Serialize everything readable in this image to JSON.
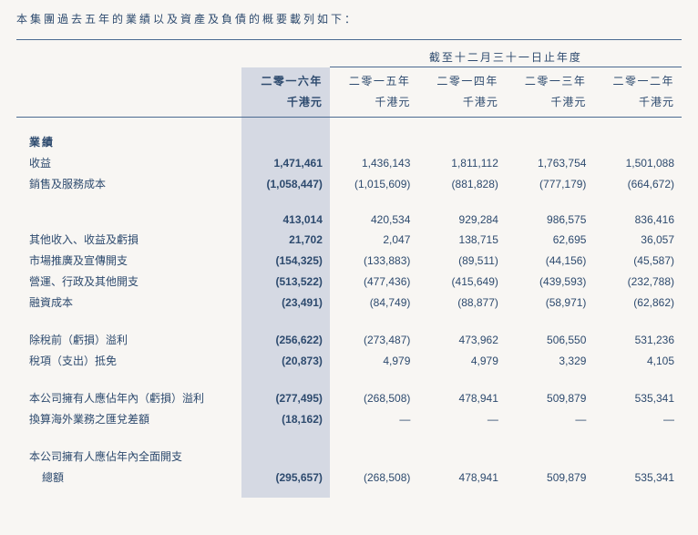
{
  "intro": "本集團過去五年的業績以及資產及負債的概要載列如下：",
  "superHeader": "截至十二月三十一日止年度",
  "years": [
    "二零一六年",
    "二零一五年",
    "二零一四年",
    "二零一三年",
    "二零一二年"
  ],
  "unit": "千港元",
  "section1": "業績",
  "rows": {
    "revenue": {
      "label": "收益",
      "v": [
        "1,471,461",
        "1,436,143",
        "1,811,112",
        "1,763,754",
        "1,501,088"
      ]
    },
    "cost": {
      "label": "銷售及服務成本",
      "v": [
        "(1,058,447)",
        "(1,015,609)",
        "(881,828)",
        "(777,179)",
        "(664,672)"
      ]
    },
    "gross": {
      "label": "",
      "v": [
        "413,014",
        "420,534",
        "929,284",
        "986,575",
        "836,416"
      ]
    },
    "other": {
      "label": "其他收入、收益及虧損",
      "v": [
        "21,702",
        "2,047",
        "138,715",
        "62,695",
        "36,057"
      ]
    },
    "mkt": {
      "label": "市場推廣及宣傳開支",
      "v": [
        "(154,325)",
        "(133,883)",
        "(89,511)",
        "(44,156)",
        "(45,587)"
      ]
    },
    "admin": {
      "label": "營運、行政及其他開支",
      "v": [
        "(513,522)",
        "(477,436)",
        "(415,649)",
        "(439,593)",
        "(232,788)"
      ]
    },
    "fin": {
      "label": "融資成本",
      "v": [
        "(23,491)",
        "(84,749)",
        "(88,877)",
        "(58,971)",
        "(62,862)"
      ]
    },
    "pretax": {
      "label": "除稅前（虧損）溢利",
      "v": [
        "(256,622)",
        "(273,487)",
        "473,962",
        "506,550",
        "531,236"
      ]
    },
    "tax": {
      "label": "稅項（支出）抵免",
      "v": [
        "(20,873)",
        "4,979",
        "4,979",
        "3,329",
        "4,105"
      ]
    },
    "owners": {
      "label": "本公司擁有人應佔年內（虧損）溢利",
      "v": [
        "(277,495)",
        "(268,508)",
        "478,941",
        "509,879",
        "535,341"
      ]
    },
    "forex": {
      "label": "換算海外業務之匯兌差額",
      "v": [
        "(18,162)",
        "—",
        "—",
        "—",
        "—"
      ]
    },
    "totalLabel1": "本公司擁有人應佔年內全面開支",
    "totalLabel2": "總額",
    "total": {
      "v": [
        "(295,657)",
        "(268,508)",
        "478,941",
        "509,879",
        "535,341"
      ]
    }
  },
  "colors": {
    "text": "#2d4a6e",
    "highlightBg": "#d5d9e3",
    "pageBg": "#f8f6f3",
    "line": "#4b6a91"
  }
}
